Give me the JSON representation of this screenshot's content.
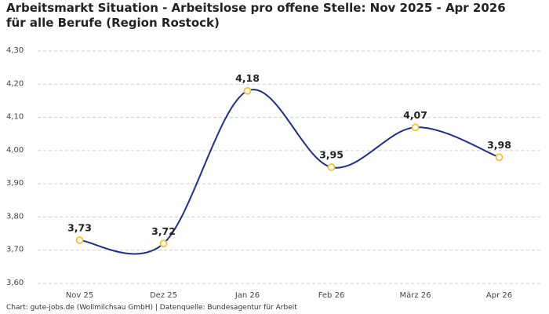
{
  "chart_data": {
    "type": "line",
    "title": "Arbeitsmarkt Situation - Arbeitslose pro offene Stelle: Nov 2025 - Apr 2026 für alle Berufe (Region Rostock)",
    "source": "Chart: gute-jobs.de (Wollmilchsau GmbH) | Datenquelle: Bundesagentur für Arbeit",
    "categories": [
      "Nov 25",
      "Dez 25",
      "Jan 26",
      "Feb 26",
      "März 26",
      "Apr 26"
    ],
    "values": [
      3.73,
      3.72,
      4.18,
      3.95,
      4.07,
      3.98
    ],
    "value_labels": [
      "3,73",
      "3,72",
      "4,18",
      "3,95",
      "4,07",
      "3,98"
    ],
    "color": "#1f2f8c",
    "marker_color": "#f2c230",
    "ylim": [
      3.6,
      4.3
    ],
    "yticks": [
      {
        "value": 3.6,
        "label": "3,60"
      },
      {
        "value": 3.7,
        "label": "3,70"
      },
      {
        "value": 3.8,
        "label": "3,80"
      },
      {
        "value": 3.9,
        "label": "3,90"
      },
      {
        "value": 4.0,
        "label": "4,00"
      },
      {
        "value": 4.1,
        "label": "4,10"
      },
      {
        "value": 4.2,
        "label": "4,20"
      },
      {
        "value": 4.3,
        "label": "4,30"
      }
    ],
    "grid": true
  }
}
